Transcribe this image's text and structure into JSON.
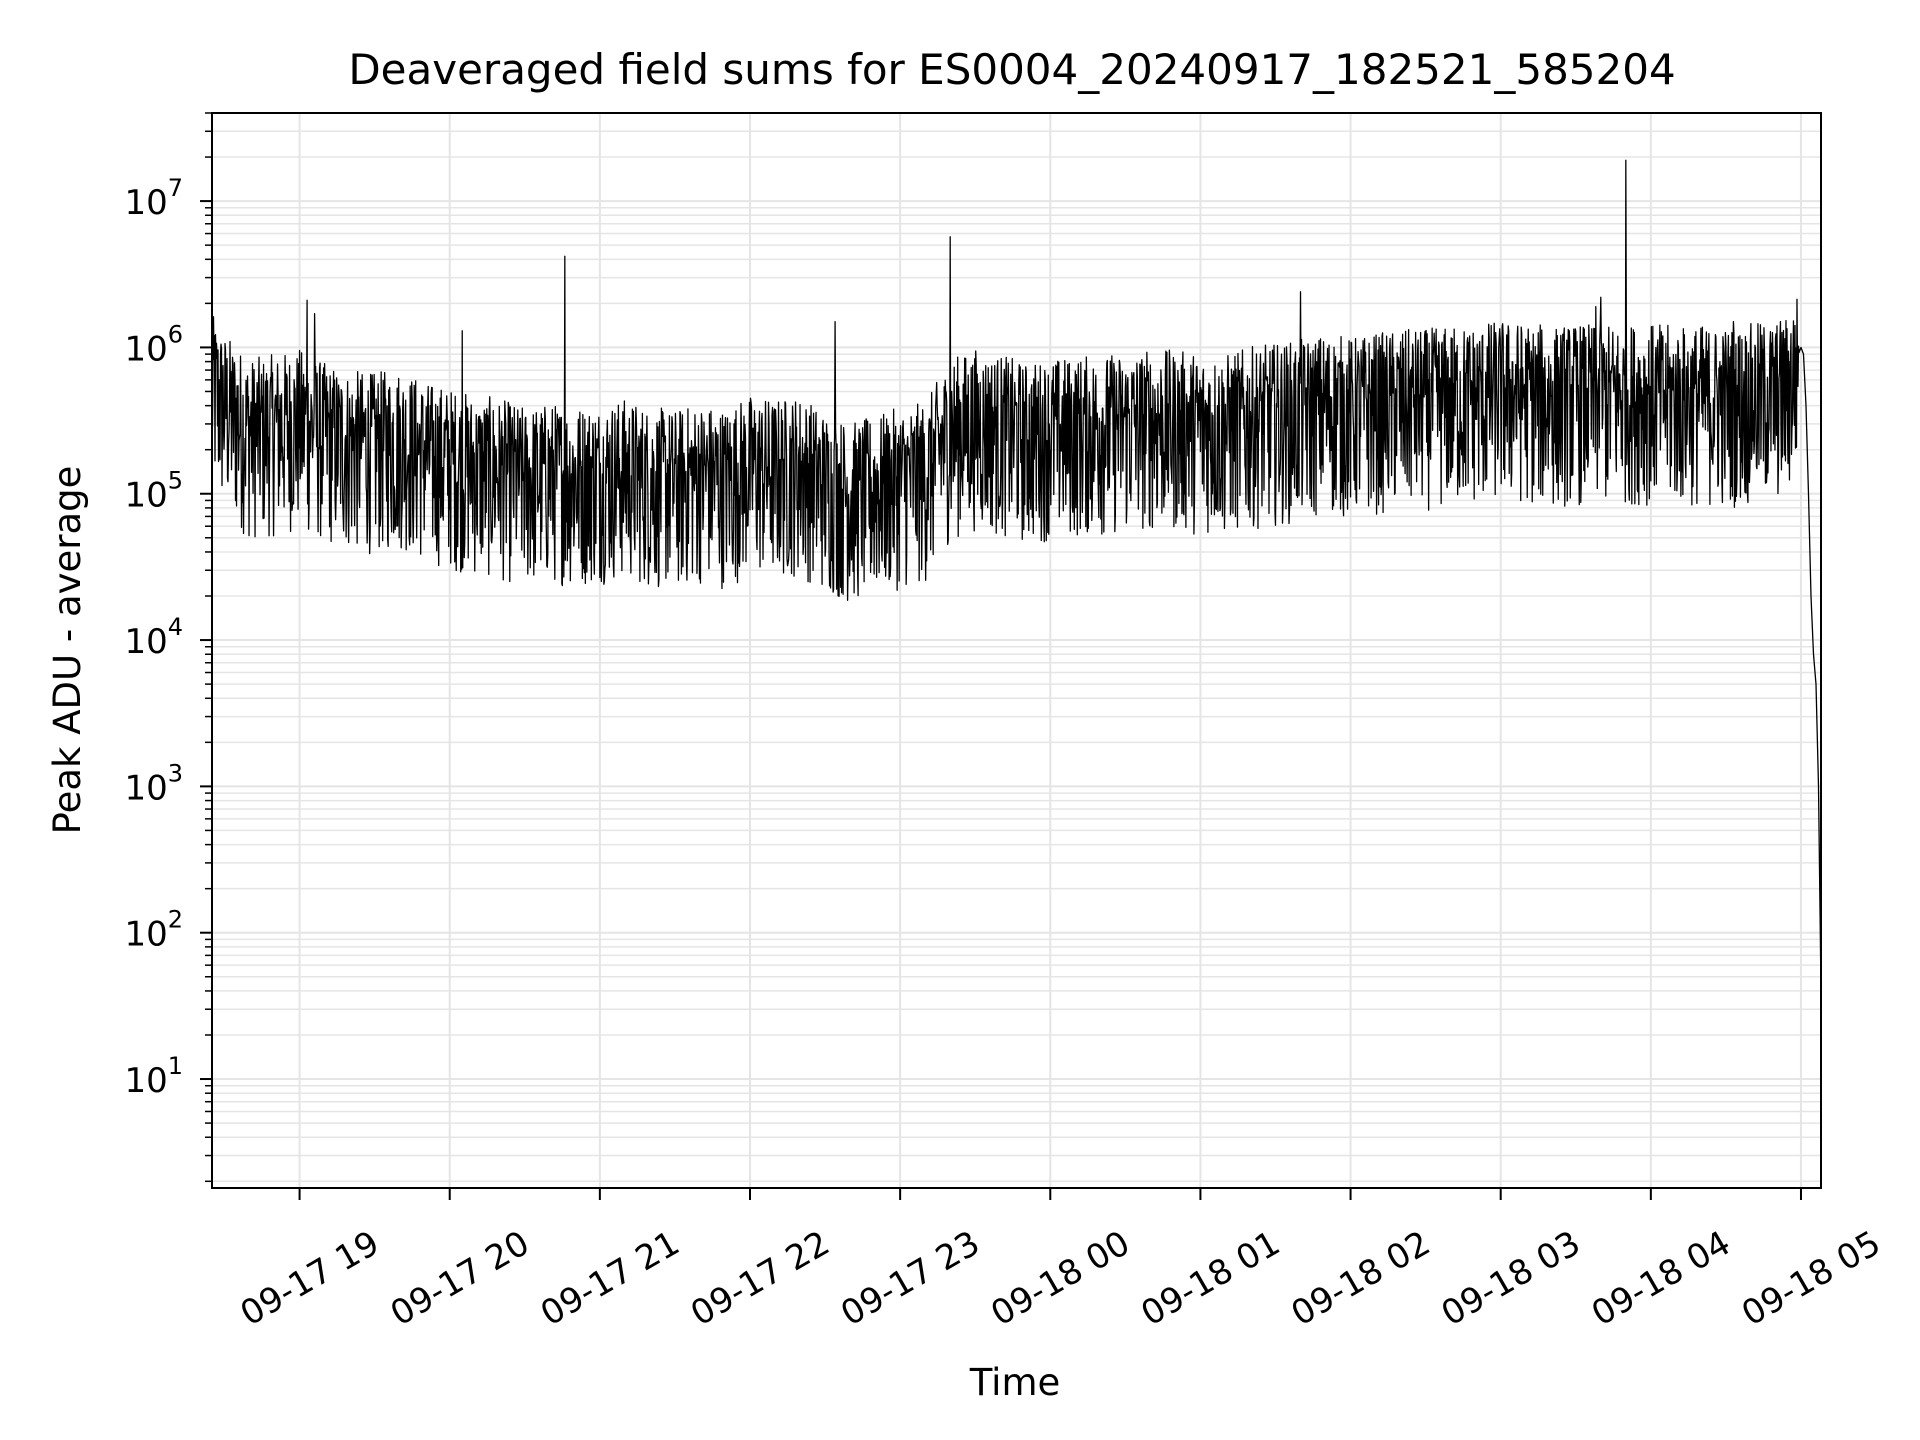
{
  "chart_data": {
    "type": "line",
    "title": "Deaveraged field sums for ES0004_20240917_182521_585204",
    "xlabel": "Time",
    "ylabel": "Peak ADU - average",
    "yscale": "log",
    "ylim": [
      1.8,
      40000000
    ],
    "xlim": [
      "2024-09-17 18:25",
      "2024-09-18 05:08"
    ],
    "grid": true,
    "line_color": "#000000",
    "grid_color": "#e5e5e5",
    "x_ticks": [
      {
        "value": "2024-09-17 19:00",
        "label": "09-17 19"
      },
      {
        "value": "2024-09-17 20:00",
        "label": "09-17 20"
      },
      {
        "value": "2024-09-17 21:00",
        "label": "09-17 21"
      },
      {
        "value": "2024-09-17 22:00",
        "label": "09-17 22"
      },
      {
        "value": "2024-09-17 23:00",
        "label": "09-17 23"
      },
      {
        "value": "2024-09-18 00:00",
        "label": "09-18 00"
      },
      {
        "value": "2024-09-18 01:00",
        "label": "09-18 01"
      },
      {
        "value": "2024-09-18 02:00",
        "label": "09-18 02"
      },
      {
        "value": "2024-09-18 03:00",
        "label": "09-18 03"
      },
      {
        "value": "2024-09-18 04:00",
        "label": "09-18 04"
      },
      {
        "value": "2024-09-18 05:00",
        "label": "09-18 05"
      }
    ],
    "y_ticks": [
      {
        "value": 10,
        "base": "10",
        "exp": "1"
      },
      {
        "value": 100,
        "base": "10",
        "exp": "2"
      },
      {
        "value": 1000,
        "base": "10",
        "exp": "3"
      },
      {
        "value": 10000,
        "base": "10",
        "exp": "4"
      },
      {
        "value": 100000,
        "base": "10",
        "exp": "5"
      },
      {
        "value": 1000000,
        "base": "10",
        "exp": "6"
      },
      {
        "value": 10000000,
        "base": "10",
        "exp": "7"
      }
    ],
    "series": [
      {
        "x": [
          "2024-09-17 18:25",
          "2024-09-17 18:30",
          "2024-09-17 18:40",
          "2024-09-17 18:50",
          "2024-09-17 19:00",
          "2024-09-17 19:10",
          "2024-09-17 19:20",
          "2024-09-17 19:30",
          "2024-09-17 19:40",
          "2024-09-17 19:50",
          "2024-09-17 20:00",
          "2024-09-17 20:10",
          "2024-09-17 20:20",
          "2024-09-17 20:30",
          "2024-09-17 20:40",
          "2024-09-17 20:50",
          "2024-09-17 21:00",
          "2024-09-17 21:10",
          "2024-09-17 21:20",
          "2024-09-17 21:30",
          "2024-09-17 21:40",
          "2024-09-17 21:50",
          "2024-09-17 22:00",
          "2024-09-17 22:10",
          "2024-09-17 22:20",
          "2024-09-17 22:30",
          "2024-09-17 22:40",
          "2024-09-17 22:50",
          "2024-09-17 23:00",
          "2024-09-17 23:10",
          "2024-09-17 23:20",
          "2024-09-17 23:30",
          "2024-09-17 23:40",
          "2024-09-17 23:50",
          "2024-09-18 00:00",
          "2024-09-18 00:10",
          "2024-09-18 00:20",
          "2024-09-18 00:30",
          "2024-09-18 00:40",
          "2024-09-18 00:50",
          "2024-09-18 01:00",
          "2024-09-18 01:10",
          "2024-09-18 01:20",
          "2024-09-18 01:30",
          "2024-09-18 01:40",
          "2024-09-18 01:50",
          "2024-09-18 02:00",
          "2024-09-18 02:10",
          "2024-09-18 02:20",
          "2024-09-18 02:30",
          "2024-09-18 02:40",
          "2024-09-18 02:50",
          "2024-09-18 03:00",
          "2024-09-18 03:10",
          "2024-09-18 03:20",
          "2024-09-18 03:30",
          "2024-09-18 03:40",
          "2024-09-18 03:50",
          "2024-09-18 04:00",
          "2024-09-18 04:10",
          "2024-09-18 04:20",
          "2024-09-18 04:30",
          "2024-09-18 04:40",
          "2024-09-18 04:50",
          "2024-09-18 04:55",
          "2024-09-18 05:00",
          "2024-09-18 05:01",
          "2024-09-18 05:02",
          "2024-09-18 05:03",
          "2024-09-18 05:04",
          "2024-09-18 05:05",
          "2024-09-18 05:06",
          "2024-09-18 05:07",
          "2024-09-18 05:08"
        ],
        "y": [
          600000,
          450000,
          300000,
          320000,
          350000,
          280000,
          250000,
          240000,
          260000,
          210000,
          190000,
          170000,
          160000,
          140000,
          150000,
          145000,
          150000,
          160000,
          140000,
          135000,
          150000,
          140000,
          170000,
          160000,
          170000,
          130000,
          110000,
          120000,
          140000,
          150000,
          300000,
          350000,
          320000,
          280000,
          300000,
          310000,
          320000,
          330000,
          350000,
          340000,
          330000,
          320000,
          360000,
          380000,
          400000,
          450000,
          420000,
          450000,
          470000,
          480000,
          500000,
          520000,
          550000,
          530000,
          500000,
          520000,
          510000,
          530000,
          520000,
          500000,
          510000,
          500000,
          520000,
          550000,
          600000,
          1000000,
          900000,
          400000,
          100000,
          20000,
          8000,
          5000,
          1000,
          40
        ]
      }
    ],
    "spikes": [
      {
        "x": "2024-09-17 18:26",
        "y": 1200000
      },
      {
        "x": "2024-09-17 19:03",
        "y": 2100000
      },
      {
        "x": "2024-09-17 19:06",
        "y": 1700000
      },
      {
        "x": "2024-09-17 20:05",
        "y": 1300000
      },
      {
        "x": "2024-09-17 20:46",
        "y": 4200000
      },
      {
        "x": "2024-09-17 22:34",
        "y": 1500000
      },
      {
        "x": "2024-09-17 23:20",
        "y": 5700000
      },
      {
        "x": "2024-09-18 01:40",
        "y": 2400000
      },
      {
        "x": "2024-09-18 03:38",
        "y": 1900000
      },
      {
        "x": "2024-09-18 03:40",
        "y": 2200000
      },
      {
        "x": "2024-09-18 03:50",
        "y": 19000000
      },
      {
        "x": "2024-09-18 04:33",
        "y": 1500000
      }
    ],
    "noise": {
      "decades_low": 0.8,
      "decades_high": 0.45,
      "points_per_hour": 300
    }
  }
}
